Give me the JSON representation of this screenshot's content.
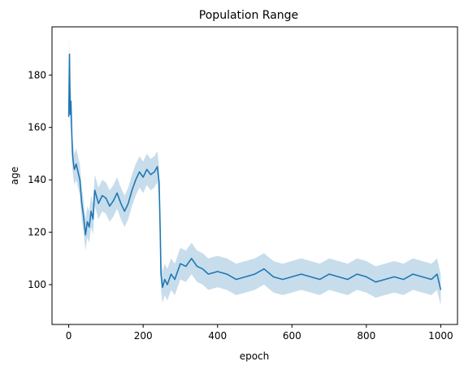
{
  "chart_data": {
    "type": "line",
    "title": "Population Range",
    "xlabel": "epoch",
    "ylabel": "age",
    "xlim": [
      -45,
      1045
    ],
    "ylim": [
      84.8,
      198.4
    ],
    "x_ticks": [
      0,
      200,
      400,
      600,
      800,
      1000
    ],
    "y_ticks": [
      100,
      120,
      140,
      160,
      180
    ],
    "grid": false,
    "legend": "none",
    "series": [
      {
        "color": "#1f77b4",
        "band_color": "#1f77b4",
        "band_opacity": 0.25,
        "points": [
          [
            0,
            164
          ],
          [
            2,
            188
          ],
          [
            4,
            165
          ],
          [
            6,
            170
          ],
          [
            8,
            158
          ],
          [
            10,
            150
          ],
          [
            12,
            147
          ],
          [
            15,
            144
          ],
          [
            20,
            146
          ],
          [
            25,
            143
          ],
          [
            30,
            140
          ],
          [
            35,
            131
          ],
          [
            40,
            126
          ],
          [
            45,
            119
          ],
          [
            50,
            124
          ],
          [
            55,
            122
          ],
          [
            60,
            128
          ],
          [
            65,
            125
          ],
          [
            70,
            136
          ],
          [
            80,
            131
          ],
          [
            90,
            134
          ],
          [
            100,
            133
          ],
          [
            110,
            130
          ],
          [
            120,
            132
          ],
          [
            130,
            135
          ],
          [
            140,
            131
          ],
          [
            150,
            128
          ],
          [
            160,
            131
          ],
          [
            170,
            136
          ],
          [
            180,
            140
          ],
          [
            190,
            143
          ],
          [
            200,
            141
          ],
          [
            210,
            144
          ],
          [
            220,
            142
          ],
          [
            230,
            143
          ],
          [
            238,
            145
          ],
          [
            243,
            139
          ],
          [
            246,
            120
          ],
          [
            248,
            104
          ],
          [
            252,
            99
          ],
          [
            258,
            102
          ],
          [
            265,
            100
          ],
          [
            275,
            104
          ],
          [
            285,
            102
          ],
          [
            300,
            108
          ],
          [
            315,
            107
          ],
          [
            330,
            110
          ],
          [
            345,
            107
          ],
          [
            360,
            106
          ],
          [
            375,
            104
          ],
          [
            400,
            105
          ],
          [
            425,
            104
          ],
          [
            450,
            102
          ],
          [
            475,
            103
          ],
          [
            500,
            104
          ],
          [
            525,
            106
          ],
          [
            550,
            103
          ],
          [
            575,
            102
          ],
          [
            600,
            103
          ],
          [
            625,
            104
          ],
          [
            650,
            103
          ],
          [
            675,
            102
          ],
          [
            700,
            104
          ],
          [
            725,
            103
          ],
          [
            750,
            102
          ],
          [
            775,
            104
          ],
          [
            800,
            103
          ],
          [
            825,
            101
          ],
          [
            850,
            102
          ],
          [
            875,
            103
          ],
          [
            900,
            102
          ],
          [
            925,
            104
          ],
          [
            950,
            103
          ],
          [
            975,
            102
          ],
          [
            990,
            104
          ],
          [
            1000,
            98
          ]
        ]
      }
    ]
  }
}
